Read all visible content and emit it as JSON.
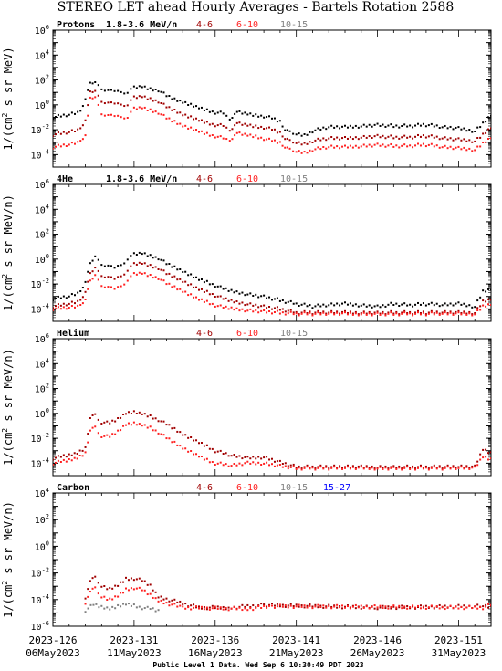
{
  "title": "STEREO LET ahead Hourly Averages - Bartels Rotation 2588",
  "footer": "Public Level 1 Data. Wed Sep  6 10:30:49 PDT 2023",
  "x_axis": {
    "day_ticks": [
      "2023-126",
      "2023-131",
      "2023-136",
      "2023-141",
      "2023-146",
      "2023-151"
    ],
    "date_ticks": [
      "06May2023",
      "11May2023",
      "16May2023",
      "21May2023",
      "26May2023",
      "31May2023"
    ],
    "range_days": [
      126,
      153
    ]
  },
  "panels": [
    {
      "species": "Protons",
      "ylabel": "1/(cm² s sr MeV)",
      "ylabel_base": "1/(cm",
      "ylabel_sup": "2",
      "ylabel_rest": " s sr MeV)",
      "legend": [
        {
          "label": "1.8-3.6 MeV/n",
          "color": "#000000"
        },
        {
          "label": "4-6",
          "color": "#a00000"
        },
        {
          "label": "6-10",
          "color": "#ff2020"
        },
        {
          "label": "10-15",
          "color": "#808080"
        }
      ],
      "y_ticks_exp": [
        6,
        4,
        2,
        0,
        -2,
        -4
      ],
      "ylim_exp": [
        -5,
        6
      ]
    },
    {
      "species": "4He",
      "ylabel_base": "1/(cm",
      "ylabel_sup": "2",
      "ylabel_rest": " s sr MeV/n)",
      "legend": [
        {
          "label": "1.8-3.6 MeV/n",
          "color": "#000000"
        },
        {
          "label": "4-6",
          "color": "#a00000"
        },
        {
          "label": "6-10",
          "color": "#ff2020"
        },
        {
          "label": "10-15",
          "color": "#808080"
        }
      ],
      "y_ticks_exp": [
        6,
        4,
        2,
        0,
        -2,
        -4
      ],
      "ylim_exp": [
        -5,
        6
      ]
    },
    {
      "species": "Helium",
      "ylabel_base": "1/(cm",
      "ylabel_sup": "2",
      "ylabel_rest": " s sr MeV/n)",
      "legend": [
        {
          "label": "4-6",
          "color": "#a00000"
        },
        {
          "label": "6-10",
          "color": "#ff2020"
        },
        {
          "label": "10-15",
          "color": "#808080"
        }
      ],
      "y_ticks_exp": [
        6,
        4,
        2,
        0,
        -2,
        -4
      ],
      "ylim_exp": [
        -5,
        6
      ]
    },
    {
      "species": "Carbon",
      "ylabel_base": "1/(cm",
      "ylabel_sup": "2",
      "ylabel_rest": " s sr MeV/n)",
      "legend": [
        {
          "label": "4-6",
          "color": "#a00000"
        },
        {
          "label": "6-10",
          "color": "#ff2020"
        },
        {
          "label": "10-15",
          "color": "#808080"
        },
        {
          "label": "15-27",
          "color": "#0000ff"
        }
      ],
      "y_ticks_exp": [
        4,
        2,
        0,
        -2,
        -4,
        -6
      ],
      "ylim_exp": [
        -6,
        4
      ]
    }
  ],
  "chart_data": [
    {
      "type": "scatter",
      "panel": "Protons",
      "x_unit": "day of year 2023",
      "series": [
        {
          "name": "1.8-3.6 MeV/n",
          "color": "#000000",
          "x": [
            126,
            127,
            127.7,
            128,
            128.3,
            128.6,
            129,
            129.4,
            129.8,
            130.2,
            130.6,
            131,
            131.5,
            132,
            132.5,
            133,
            133.5,
            134,
            134.5,
            135,
            135.5,
            136,
            136.5,
            136.9,
            137.2,
            137.5,
            138,
            138.5,
            139,
            139.5,
            140,
            140.3,
            140.6,
            141,
            141.5,
            142,
            143,
            144,
            145,
            146,
            147,
            148,
            149,
            150,
            151,
            152,
            152.5,
            153
          ],
          "y_exp": [
            -1,
            -0.8,
            -0.6,
            0.5,
            1.7,
            1.9,
            1.2,
            1.3,
            1.1,
            0.9,
            1.0,
            1.4,
            1.5,
            1.3,
            1.2,
            0.7,
            0.4,
            0.2,
            0,
            -0.2,
            -0.4,
            -0.6,
            -0.7,
            -1.3,
            -0.7,
            -0.6,
            -0.7,
            -0.8,
            -0.9,
            -1.1,
            -1.4,
            -2.0,
            -2.2,
            -2.3,
            -2.4,
            -2.1,
            -1.8,
            -1.8,
            -1.7,
            -1.6,
            -1.7,
            -1.7,
            -1.6,
            -1.8,
            -1.9,
            -2.1,
            -1.5,
            -0.8
          ]
        },
        {
          "name": "4-6",
          "color": "#a00000",
          "x": [
            126,
            127,
            127.7,
            128,
            128.3,
            128.6,
            129,
            129.4,
            129.8,
            130.2,
            130.6,
            131,
            131.5,
            132,
            132.5,
            133,
            133.5,
            134,
            134.5,
            135,
            135.5,
            136,
            136.5,
            136.9,
            137.2,
            137.5,
            138,
            138.5,
            139,
            139.5,
            140,
            140.3,
            140.6,
            141,
            141.5,
            142,
            143,
            144,
            145,
            146,
            147,
            148,
            149,
            150,
            151,
            152,
            152.5,
            153
          ],
          "y_exp": [
            -2.4,
            -2.2,
            -2.0,
            -1.2,
            1.0,
            1.2,
            0.2,
            0.3,
            0.1,
            -0.1,
            0,
            0.6,
            0.7,
            0.5,
            0.3,
            -0.2,
            -0.5,
            -0.8,
            -1.0,
            -1.2,
            -1.4,
            -1.6,
            -1.7,
            -2.2,
            -1.6,
            -1.5,
            -1.6,
            -1.7,
            -1.8,
            -2.0,
            -2.3,
            -2.7,
            -2.9,
            -3.0,
            -3.1,
            -2.9,
            -2.7,
            -2.7,
            -2.6,
            -2.5,
            -2.6,
            -2.6,
            -2.5,
            -2.7,
            -2.8,
            -2.9,
            -2.4,
            -1.8
          ]
        },
        {
          "name": "6-10",
          "color": "#ff2020",
          "x": [
            126,
            127,
            127.7,
            128,
            128.3,
            128.6,
            129,
            129.4,
            129.8,
            130.2,
            130.6,
            131,
            131.5,
            132,
            132.5,
            133,
            133.5,
            134,
            134.5,
            135,
            135.5,
            136,
            136.5,
            136.9,
            137.2,
            137.5,
            138,
            138.5,
            139,
            139.5,
            140,
            140.3,
            140.6,
            141,
            141.5,
            142,
            143,
            144,
            145,
            146,
            147,
            148,
            149,
            150,
            151,
            152,
            152.5,
            153
          ],
          "y_exp": [
            -3.4,
            -3.2,
            -3.0,
            -2.4,
            0.5,
            0.7,
            -0.8,
            -0.7,
            -0.9,
            -1.1,
            -1.0,
            -0.3,
            -0.2,
            -0.4,
            -0.6,
            -1.1,
            -1.4,
            -1.7,
            -1.9,
            -2.1,
            -2.3,
            -2.5,
            -2.7,
            -3.0,
            -2.4,
            -2.3,
            -2.4,
            -2.5,
            -2.7,
            -2.9,
            -3.1,
            -3.4,
            -3.6,
            -3.7,
            -3.8,
            -3.6,
            -3.4,
            -3.4,
            -3.3,
            -3.2,
            -3.3,
            -3.3,
            -3.2,
            -3.4,
            -3.5,
            -3.6,
            -3.1,
            -2.6
          ]
        }
      ]
    },
    {
      "type": "scatter",
      "panel": "4He",
      "x_unit": "day of year 2023",
      "series": [
        {
          "name": "1.8-3.6 MeV/n",
          "color": "#000000",
          "x": [
            126,
            127,
            127.7,
            128,
            128.3,
            128.6,
            129,
            129.4,
            129.8,
            130.2,
            130.6,
            131,
            131.5,
            132,
            132.5,
            133,
            133.5,
            134,
            134.5,
            135,
            135.5,
            136,
            136.5,
            137,
            138,
            139,
            140,
            141,
            142,
            143,
            144,
            145,
            146,
            147,
            148,
            149,
            150,
            151,
            152,
            152.5,
            153
          ],
          "y_exp": [
            -3.2,
            -3.0,
            -2.7,
            -1.8,
            -0.4,
            0.3,
            -0.5,
            -0.4,
            -0.7,
            -0.6,
            0.0,
            0.4,
            0.5,
            0.3,
            0.1,
            -0.4,
            -0.7,
            -1.0,
            -1.3,
            -1.6,
            -1.8,
            -2.1,
            -2.4,
            -2.6,
            -2.8,
            -3.0,
            -3.3,
            -3.6,
            -3.8,
            -3.7,
            -3.6,
            -3.7,
            -3.8,
            -3.6,
            -3.7,
            -3.6,
            -3.7,
            -3.6,
            -3.8,
            -2.6,
            -2.4
          ]
        },
        {
          "name": "4-6",
          "color": "#a00000",
          "x": [
            126,
            127,
            127.7,
            128,
            128.3,
            128.6,
            129,
            129.4,
            129.8,
            130.2,
            130.6,
            131,
            131.5,
            132,
            132.5,
            133,
            133.5,
            134,
            134.5,
            135,
            135.5,
            136,
            136.5,
            137,
            138,
            139,
            140,
            141,
            142,
            143,
            144,
            145,
            146,
            147,
            148,
            149,
            150,
            151,
            152,
            152.5,
            153
          ],
          "y_exp": [
            -3.8,
            -3.6,
            -3.4,
            -2.6,
            -1.2,
            -0.6,
            -1.4,
            -1.3,
            -1.6,
            -1.5,
            -0.9,
            -0.4,
            -0.3,
            -0.5,
            -0.7,
            -1.2,
            -1.5,
            -1.8,
            -2.1,
            -2.4,
            -2.6,
            -2.9,
            -3.2,
            -3.4,
            -3.6,
            -3.8,
            -4.0,
            -4.3,
            -4.3,
            -4.3,
            -4.3,
            -4.3,
            -4.3,
            -4.3,
            -4.3,
            -4.3,
            -4.3,
            -4.3,
            -4.3,
            -3.4,
            -3.2
          ]
        },
        {
          "name": "6-10",
          "color": "#ff2020",
          "x": [
            126,
            127,
            127.7,
            128,
            128.3,
            128.6,
            129,
            129.4,
            129.8,
            130.2,
            130.6,
            131,
            131.5,
            132,
            132.5,
            133,
            133.5,
            134,
            134.5,
            135,
            135.5,
            136,
            136.5,
            137,
            138,
            139,
            140,
            141,
            142,
            143,
            144,
            145,
            146,
            147,
            148,
            149,
            150,
            151,
            152,
            152.5,
            153
          ],
          "y_exp": [
            -4.0,
            -3.9,
            -3.8,
            -3.2,
            -1.8,
            -1.2,
            -2.2,
            -2.1,
            -2.4,
            -2.3,
            -1.7,
            -1.2,
            -1.1,
            -1.3,
            -1.5,
            -2.0,
            -2.3,
            -2.6,
            -2.9,
            -3.2,
            -3.4,
            -3.7,
            -3.9,
            -4.0,
            -4.1,
            -4.2,
            -4.3,
            -4.4,
            -4.4,
            -4.4,
            -4.4,
            -4.4,
            -4.4,
            -4.4,
            -4.4,
            -4.4,
            -4.4,
            -4.4,
            -4.4,
            -3.8,
            -3.6
          ]
        }
      ]
    },
    {
      "type": "scatter",
      "panel": "Helium",
      "x_unit": "day of year 2023",
      "series": [
        {
          "name": "4-6",
          "color": "#a00000",
          "x": [
            126,
            126.5,
            127,
            127.5,
            128,
            128.3,
            128.6,
            129,
            129.5,
            130,
            130.5,
            131,
            131.5,
            132,
            132.5,
            133,
            133.5,
            134,
            134.5,
            135,
            135.5,
            136,
            137,
            138,
            139,
            140,
            141,
            142,
            143,
            144,
            145,
            146,
            147,
            148,
            149,
            150,
            151,
            152,
            152.5,
            153
          ],
          "y_exp": [
            -3.6,
            -3.5,
            -3.4,
            -3.2,
            -2.8,
            -0.3,
            -0.1,
            -0.7,
            -0.8,
            -0.5,
            0.0,
            0.1,
            0,
            -0.2,
            -0.5,
            -0.9,
            -1.3,
            -1.7,
            -2.0,
            -2.3,
            -2.6,
            -3.0,
            -3.4,
            -3.6,
            -3.5,
            -3.9,
            -4.3,
            -4.3,
            -4.3,
            -4.3,
            -4.3,
            -4.3,
            -4.3,
            -4.3,
            -4.3,
            -4.3,
            -4.3,
            -4.3,
            -2.9,
            -3.2
          ]
        },
        {
          "name": "6-10",
          "color": "#ff2020",
          "x": [
            126,
            126.5,
            127,
            127.5,
            128,
            128.3,
            128.6,
            129,
            129.5,
            130,
            130.5,
            131,
            131.5,
            132,
            132.5,
            133,
            133.5,
            134,
            134.5,
            135,
            135.5,
            136,
            137,
            138,
            139,
            140,
            141,
            142,
            143,
            144,
            145,
            146,
            147,
            148,
            149,
            150,
            151,
            152,
            152.5,
            153
          ],
          "y_exp": [
            -4.0,
            -3.9,
            -3.8,
            -3.6,
            -3.2,
            -1.3,
            -1.1,
            -1.8,
            -1.9,
            -1.5,
            -0.9,
            -0.8,
            -0.9,
            -1.1,
            -1.5,
            -2.0,
            -2.4,
            -2.8,
            -3.1,
            -3.4,
            -3.7,
            -4.0,
            -4.2,
            -4.0,
            -4.0,
            -4.2,
            -4.4,
            -4.4,
            -4.4,
            -4.4,
            -4.4,
            -4.4,
            -4.4,
            -4.4,
            -4.4,
            -4.4,
            -4.4,
            -4.4,
            -3.5,
            -3.7
          ]
        }
      ]
    },
    {
      "type": "scatter",
      "panel": "Carbon",
      "x_unit": "day of year 2023",
      "series": [
        {
          "name": "4-6",
          "color": "#a00000",
          "x": [
            128,
            128.3,
            128.6,
            129,
            129.5,
            130,
            130.5,
            131,
            131.5,
            132,
            132.5,
            135,
            137,
            139,
            146,
            152.5,
            153
          ],
          "y_exp": [
            -3.8,
            -2.6,
            -2.4,
            -3.0,
            -3.2,
            -2.9,
            -2.4,
            -2.4,
            -2.6,
            -3.0,
            -3.8,
            -4.6,
            -4.6,
            -4.4,
            -4.6,
            -4.5,
            -4.6
          ]
        },
        {
          "name": "6-10",
          "color": "#ff2020",
          "x": [
            128,
            128.3,
            128.6,
            129,
            129.5,
            130,
            130.5,
            131,
            131.5,
            132,
            132.5,
            134,
            138,
            139.5,
            152.5,
            153
          ],
          "y_exp": [
            -4.2,
            -3.4,
            -3.2,
            -3.8,
            -4.0,
            -3.7,
            -3.2,
            -3.1,
            -3.3,
            -3.7,
            -4.1,
            -4.6,
            -4.7,
            -4.5,
            -4.6,
            -4.4
          ]
        },
        {
          "name": "10-15",
          "color": "#808080",
          "x": [
            128,
            128.5,
            129,
            129.5,
            130,
            130.5,
            131,
            131.5,
            132,
            132.5
          ],
          "y_exp": [
            -4.8,
            -4.4,
            -4.6,
            -4.7,
            -4.5,
            -4.3,
            -4.4,
            -4.6,
            -4.7,
            -4.9
          ]
        }
      ]
    }
  ]
}
